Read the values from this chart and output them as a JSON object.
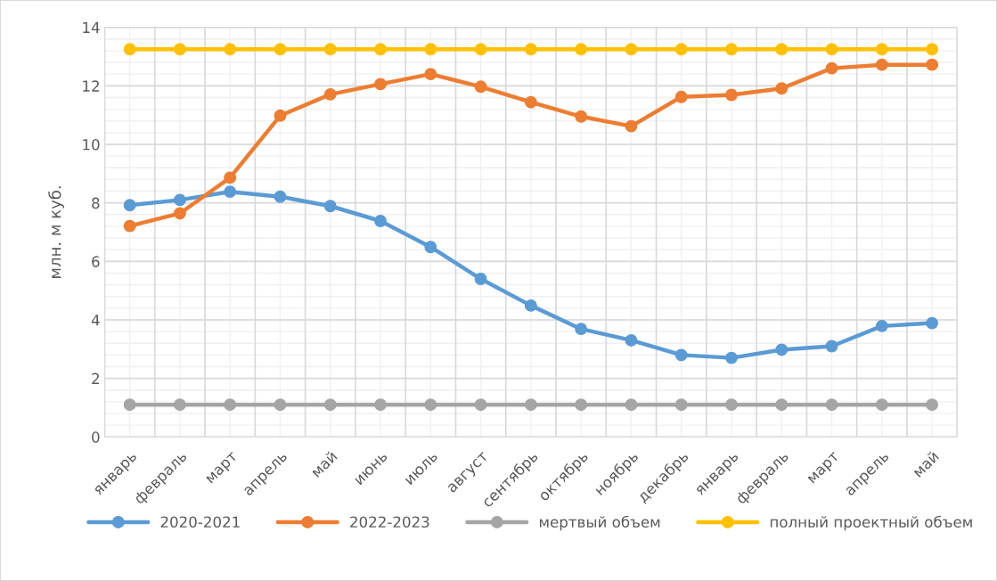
{
  "chart_data": {
    "type": "line",
    "ylabel": "млн. м куб.",
    "categories": [
      "январь",
      "февраль",
      "март",
      "апрель",
      "май",
      "июнь",
      "июль",
      "август",
      "сентябрь",
      "октябрь",
      "ноябрь",
      "декабрь",
      "январь",
      "февраль",
      "март",
      "апрель",
      "май"
    ],
    "series": [
      {
        "name": "2020-2021",
        "color": "#5b9bd5",
        "values": [
          7.92,
          8.1,
          8.38,
          8.21,
          7.89,
          7.38,
          6.49,
          5.4,
          4.49,
          3.69,
          3.3,
          2.8,
          2.7,
          2.98,
          3.1,
          3.79,
          3.89
        ]
      },
      {
        "name": "2022-2023",
        "color": "#ed7d31",
        "values": [
          7.21,
          7.64,
          8.86,
          10.98,
          11.71,
          12.06,
          12.4,
          11.97,
          11.44,
          10.95,
          10.62,
          11.62,
          11.69,
          11.91,
          12.6,
          12.72,
          12.72
        ]
      },
      {
        "name": "мертвый объем",
        "color": "#a5a5a5",
        "values": [
          1.1,
          1.1,
          1.1,
          1.1,
          1.1,
          1.1,
          1.1,
          1.1,
          1.1,
          1.1,
          1.1,
          1.1,
          1.1,
          1.1,
          1.1,
          1.1,
          1.1
        ]
      },
      {
        "name": "полный проектный объем",
        "color": "#ffc000",
        "values": [
          13.25,
          13.25,
          13.25,
          13.25,
          13.25,
          13.25,
          13.25,
          13.25,
          13.25,
          13.25,
          13.25,
          13.25,
          13.25,
          13.25,
          13.25,
          13.25,
          13.25
        ]
      }
    ],
    "ylim": [
      0,
      14
    ],
    "yticks": [
      0,
      2,
      4,
      6,
      8,
      10,
      12,
      14
    ],
    "grid": true,
    "legend": "bottom",
    "marker": "circle",
    "line_style": "solid"
  }
}
